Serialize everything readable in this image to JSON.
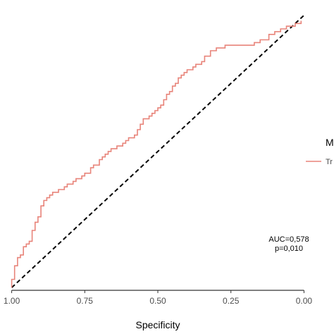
{
  "chart_data": {
    "type": "line",
    "xlabel": "Specificity",
    "ylabel": "",
    "xlim": [
      1.04,
      -0.04
    ],
    "ylim": [
      -0.01,
      1.02
    ],
    "x_reversed": true,
    "grid": false,
    "x_ticks": [
      1.0,
      0.75,
      0.5,
      0.25,
      0.0
    ],
    "x_tick_labels": [
      "1.00",
      "0.75",
      "0.50",
      "0.25",
      "0.00"
    ],
    "annotations": [
      "AUC=0,578",
      "p=0,010"
    ],
    "legend": {
      "position": "right",
      "title": "M",
      "entries": [
        "Tr"
      ]
    },
    "diagonal": {
      "style": "dashed",
      "color": "#000000"
    },
    "series": [
      {
        "name": "Tr",
        "color": "#e8847a",
        "x": [
          1.0,
          1.0,
          0.99,
          0.99,
          0.98,
          0.98,
          0.97,
          0.96,
          0.96,
          0.95,
          0.94,
          0.93,
          0.93,
          0.92,
          0.92,
          0.91,
          0.9,
          0.9,
          0.89,
          0.89,
          0.88,
          0.88,
          0.87,
          0.87,
          0.86,
          0.85,
          0.84,
          0.82,
          0.81,
          0.79,
          0.78,
          0.76,
          0.75,
          0.73,
          0.72,
          0.7,
          0.7,
          0.69,
          0.68,
          0.67,
          0.66,
          0.64,
          0.62,
          0.61,
          0.6,
          0.58,
          0.57,
          0.56,
          0.55,
          0.53,
          0.52,
          0.51,
          0.5,
          0.49,
          0.48,
          0.47,
          0.46,
          0.45,
          0.44,
          0.43,
          0.42,
          0.41,
          0.4,
          0.39,
          0.38,
          0.37,
          0.36,
          0.35,
          0.34,
          0.32,
          0.3,
          0.28,
          0.27,
          0.26,
          0.25,
          0.23,
          0.21,
          0.19,
          0.17,
          0.15,
          0.12,
          0.1,
          0.08,
          0.06,
          0.04,
          0.03,
          0.01
        ],
        "y": [
          0.0,
          0.03,
          0.05,
          0.08,
          0.09,
          0.11,
          0.12,
          0.14,
          0.15,
          0.16,
          0.17,
          0.19,
          0.21,
          0.22,
          0.24,
          0.26,
          0.28,
          0.3,
          0.31,
          0.32,
          0.33,
          0.33,
          0.34,
          0.34,
          0.35,
          0.35,
          0.36,
          0.37,
          0.38,
          0.39,
          0.4,
          0.41,
          0.42,
          0.44,
          0.45,
          0.47,
          0.47,
          0.48,
          0.49,
          0.5,
          0.51,
          0.52,
          0.53,
          0.54,
          0.55,
          0.56,
          0.58,
          0.6,
          0.62,
          0.63,
          0.64,
          0.65,
          0.66,
          0.67,
          0.69,
          0.71,
          0.72,
          0.74,
          0.75,
          0.77,
          0.78,
          0.79,
          0.8,
          0.8,
          0.81,
          0.82,
          0.82,
          0.83,
          0.85,
          0.87,
          0.88,
          0.88,
          0.89,
          0.89,
          0.89,
          0.89,
          0.89,
          0.89,
          0.9,
          0.91,
          0.93,
          0.94,
          0.95,
          0.96,
          0.96,
          0.97,
          0.98
        ]
      }
    ]
  }
}
